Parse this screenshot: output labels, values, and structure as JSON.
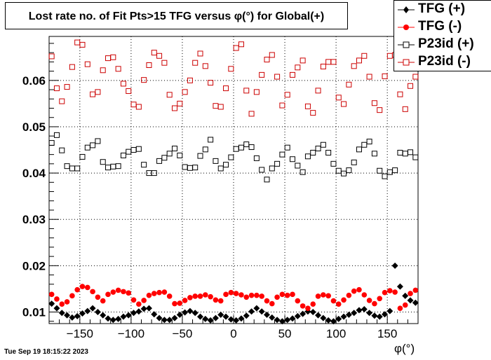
{
  "title": "Lost rate no. of Fit Pts>15 TFG versus φ(°) for Global(+)",
  "footer": "Tue Sep 19 18:15:22 2023",
  "colors": {
    "tfg_plus": "#000000",
    "tfg_minus": "#ff0000",
    "p23_plus": "#000000",
    "p23_minus": "#cc0000",
    "grid": "#000000"
  },
  "chart_data": {
    "type": "scatter",
    "title": "Lost rate no. of Fit Pts>15 TFG versus φ(°) for Global(+)",
    "xlabel": "φ(°)",
    "ylabel": "",
    "xlim": [
      -180,
      180
    ],
    "ylim": [
      0.0075,
      0.0695
    ],
    "xticks": [
      -150,
      -100,
      -50,
      0,
      50,
      100,
      150
    ],
    "xtick_labels": [
      "−150",
      "−100",
      "−50",
      "0",
      "50",
      "100",
      "150"
    ],
    "yticks": [
      0.01,
      0.02,
      0.03,
      0.04,
      0.05,
      0.06
    ],
    "ytick_labels": [
      "0.01",
      "0.02",
      "0.03",
      "0.04",
      "0.05",
      "0.06"
    ],
    "grid": true,
    "legend_position": "top-right",
    "bin_width": 5,
    "x": [
      -177.5,
      -172.5,
      -167.5,
      -162.5,
      -157.5,
      -152.5,
      -147.5,
      -142.5,
      -137.5,
      -132.5,
      -127.5,
      -122.5,
      -117.5,
      -112.5,
      -107.5,
      -102.5,
      -97.5,
      -92.5,
      -87.5,
      -82.5,
      -77.5,
      -72.5,
      -67.5,
      -62.5,
      -57.5,
      -52.5,
      -47.5,
      -42.5,
      -37.5,
      -32.5,
      -27.5,
      -22.5,
      -17.5,
      -12.5,
      -7.5,
      -2.5,
      2.5,
      7.5,
      12.5,
      17.5,
      22.5,
      27.5,
      32.5,
      37.5,
      42.5,
      47.5,
      52.5,
      57.5,
      62.5,
      67.5,
      72.5,
      77.5,
      82.5,
      87.5,
      92.5,
      97.5,
      102.5,
      107.5,
      112.5,
      117.5,
      122.5,
      127.5,
      132.5,
      137.5,
      142.5,
      147.5,
      152.5,
      157.5,
      162.5,
      167.5,
      172.5,
      177.5
    ],
    "series": [
      {
        "name": "TFG (+)",
        "marker": "filled-diamond",
        "values": [
          0.0118,
          0.0108,
          0.0098,
          0.0093,
          0.0088,
          0.0091,
          0.0097,
          0.0102,
          0.0108,
          0.01,
          0.0093,
          0.0086,
          0.0083,
          0.0085,
          0.009,
          0.0093,
          0.0098,
          0.0101,
          0.0107,
          0.0108,
          0.0095,
          0.0087,
          0.0083,
          0.0083,
          0.0087,
          0.0094,
          0.0099,
          0.0102,
          0.0098,
          0.009,
          0.0085,
          0.0082,
          0.0087,
          0.0094,
          0.009,
          0.0084,
          0.0082,
          0.0086,
          0.0092,
          0.0101,
          0.0108,
          0.0101,
          0.0094,
          0.0088,
          0.0083,
          0.008,
          0.0083,
          0.0086,
          0.0091,
          0.0096,
          0.0101,
          0.01,
          0.0093,
          0.0087,
          0.0082,
          0.008,
          0.0085,
          0.009,
          0.0094,
          0.0098,
          0.0104,
          0.0106,
          0.0098,
          0.0092,
          0.009,
          0.0095,
          0.0102,
          0.02,
          0.0155,
          0.0135,
          0.0125,
          0.012
        ]
      },
      {
        "name": "TFG (-)",
        "marker": "filled-circle",
        "values": [
          0.0138,
          0.0128,
          0.0117,
          0.0122,
          0.0135,
          0.0148,
          0.0155,
          0.0153,
          0.0144,
          0.0132,
          0.0124,
          0.0138,
          0.0143,
          0.0147,
          0.0144,
          0.0141,
          0.0126,
          0.0117,
          0.0125,
          0.0136,
          0.014,
          0.0142,
          0.0143,
          0.0134,
          0.0118,
          0.0119,
          0.0125,
          0.0131,
          0.0134,
          0.0134,
          0.0137,
          0.0133,
          0.0126,
          0.0124,
          0.0138,
          0.0142,
          0.014,
          0.0137,
          0.0132,
          0.0136,
          0.0136,
          0.0134,
          0.0124,
          0.0118,
          0.0132,
          0.0138,
          0.0136,
          0.0138,
          0.0124,
          0.0113,
          0.0108,
          0.0117,
          0.0134,
          0.0137,
          0.0135,
          0.0124,
          0.0117,
          0.0126,
          0.0136,
          0.0145,
          0.0148,
          0.0137,
          0.0125,
          0.0118,
          0.0129,
          0.0142,
          0.0146,
          0.0143,
          0.0108,
          0.0115,
          0.014,
          0.0147
        ]
      },
      {
        "name": "P23id (+)",
        "marker": "open-square",
        "values": [
          0.0465,
          0.0482,
          0.0449,
          0.0415,
          0.041,
          0.041,
          0.0435,
          0.0455,
          0.046,
          0.0469,
          0.0424,
          0.0412,
          0.0414,
          0.0415,
          0.0438,
          0.0446,
          0.045,
          0.0452,
          0.0418,
          0.04,
          0.04,
          0.0426,
          0.0433,
          0.0442,
          0.0453,
          0.0438,
          0.0413,
          0.0411,
          0.0412,
          0.0437,
          0.0451,
          0.0472,
          0.0426,
          0.041,
          0.0418,
          0.0434,
          0.0452,
          0.0455,
          0.0462,
          0.0456,
          0.0432,
          0.0407,
          0.0386,
          0.041,
          0.042,
          0.044,
          0.0455,
          0.043,
          0.0416,
          0.0402,
          0.0436,
          0.0444,
          0.0453,
          0.0461,
          0.0444,
          0.042,
          0.0405,
          0.0399,
          0.0406,
          0.0423,
          0.0451,
          0.0461,
          0.0468,
          0.0442,
          0.0405,
          0.0393,
          0.0402,
          0.0406,
          0.0444,
          0.0442,
          0.0445,
          0.0434
        ]
      },
      {
        "name": "P23id (-)",
        "marker": "open-square",
        "values": [
          0.0652,
          0.0583,
          0.0555,
          0.0586,
          0.0629,
          0.0682,
          0.0677,
          0.0635,
          0.057,
          0.0575,
          0.0622,
          0.0648,
          0.065,
          0.0625,
          0.0593,
          0.0577,
          0.0548,
          0.0543,
          0.0601,
          0.0633,
          0.066,
          0.0653,
          0.0638,
          0.0569,
          0.054,
          0.055,
          0.0575,
          0.06,
          0.0638,
          0.0658,
          0.0631,
          0.0595,
          0.0545,
          0.0543,
          0.0583,
          0.0625,
          0.067,
          0.0678,
          0.0578,
          0.0528,
          0.0575,
          0.0612,
          0.0645,
          0.0655,
          0.0608,
          0.0546,
          0.0569,
          0.0612,
          0.0628,
          0.0643,
          0.0544,
          0.053,
          0.0578,
          0.063,
          0.064,
          0.064,
          0.0563,
          0.0549,
          0.0591,
          0.0631,
          0.0643,
          0.0653,
          0.0608,
          0.0551,
          0.0536,
          0.0609,
          0.0653,
          0.0655,
          0.057,
          0.0538,
          0.0588,
          0.0608
        ]
      }
    ]
  }
}
